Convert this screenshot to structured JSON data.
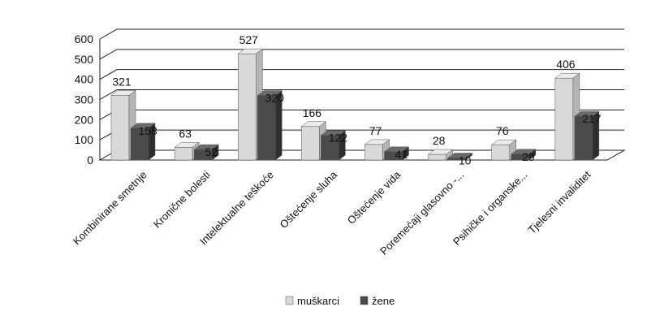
{
  "chart_data": {
    "type": "bar",
    "title": "",
    "xlabel": "",
    "ylabel": "",
    "ylim": [
      0,
      600
    ],
    "yticks": [
      0,
      100,
      200,
      300,
      400,
      500,
      600
    ],
    "categories": [
      "Kombinirane smetnje",
      "Kronične bolesti",
      "Intelektualne teškoće",
      "Oštećenje sluha",
      "Oštećenje vida",
      "Poremećaji glasovno -...",
      "Psihičke i organske...",
      "Tjelesni invaliditet"
    ],
    "series": [
      {
        "name": "muškarci",
        "values": [
          321,
          63,
          527,
          166,
          77,
          28,
          76,
          406
        ]
      },
      {
        "name": "žene",
        "values": [
          158,
          52,
          320,
          122,
          41,
          10,
          29,
          217
        ]
      }
    ],
    "grid": true,
    "legend_position": "bottom",
    "three_d": true
  },
  "colors": {
    "muskarci_front": "#d9d9d9",
    "muskarci_side": "#b5b5b5",
    "muskarci_top": "#ececec",
    "zene_front": "#4a4a4a",
    "zene_side": "#2e2e2e",
    "zene_top": "#6a6a6a",
    "grid": "#222222"
  }
}
